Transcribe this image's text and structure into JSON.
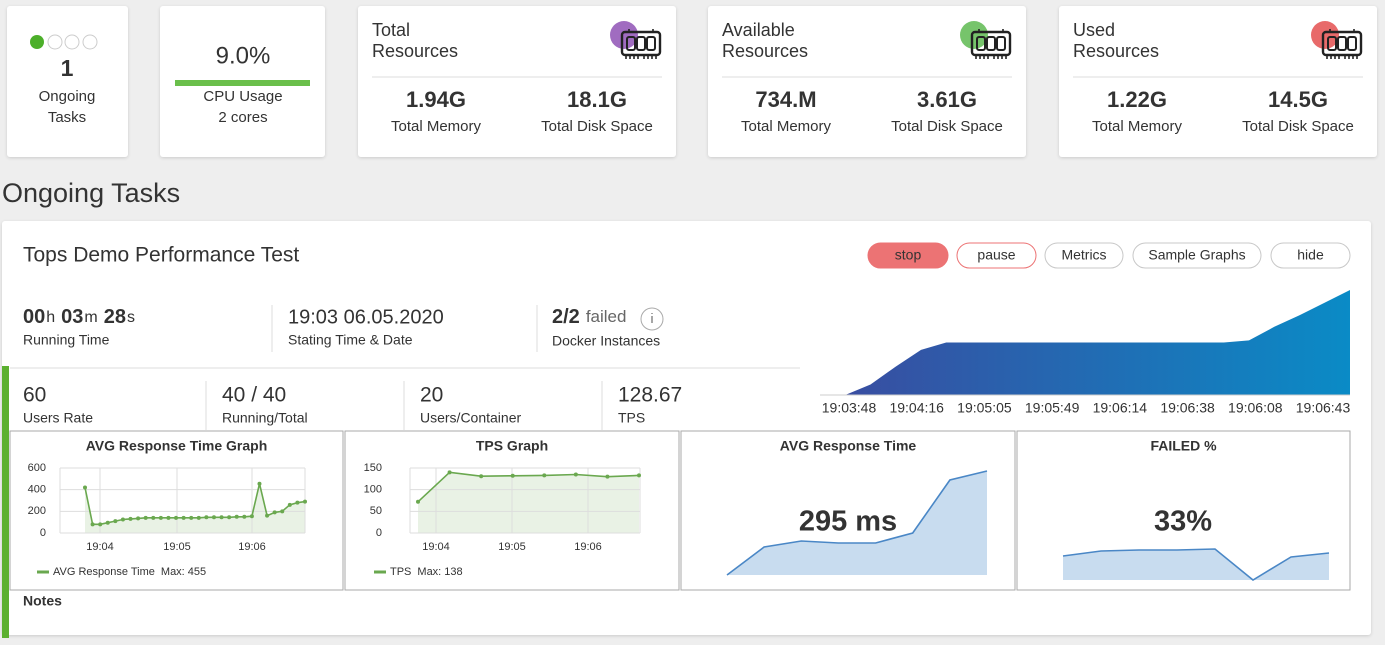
{
  "ongoing_card": {
    "count": "1",
    "label": [
      "Ongoing",
      "Tasks"
    ]
  },
  "cpu_card": {
    "value": "9.0%",
    "label": "CPU Usage",
    "cores": "2 cores"
  },
  "resource_cards": [
    {
      "title": [
        "Total",
        "Resources"
      ],
      "icon_color": "#a06cc0",
      "memory": "1.94G",
      "memory_label": "Total Memory",
      "disk": "18.1G",
      "disk_label": "Total Disk Space"
    },
    {
      "title": [
        "Available",
        "Resources"
      ],
      "icon_color": "#76c46b",
      "memory": "734.M",
      "memory_label": "Total Memory",
      "disk": "3.61G",
      "disk_label": "Total Disk Space"
    },
    {
      "title": [
        "Used",
        "Resources"
      ],
      "icon_color": "#e86a6a",
      "memory": "1.22G",
      "memory_label": "Total Memory",
      "disk": "14.5G",
      "disk_label": "Total Disk Space"
    }
  ],
  "section_title": "Ongoing Tasks",
  "task": {
    "title": "Tops Demo Performance Test",
    "buttons": [
      "stop",
      "pause",
      "Metrics",
      "Sample Graphs",
      "hide"
    ],
    "running_time": [
      {
        "num": "00",
        "unit": "h"
      },
      {
        "num": "03",
        "unit": "m"
      },
      {
        "num": "28",
        "unit": "s"
      }
    ],
    "running_time_label": "Running Time",
    "start": "19:03 06.05.2020",
    "start_label": "Stating Time & Date",
    "docker": "2/2",
    "docker_status": "failed",
    "docker_label": "Docker Instances",
    "stats": [
      {
        "value": "60",
        "label": "Users Rate"
      },
      {
        "value": "40 / 40",
        "label": "Running/Total"
      },
      {
        "value": "20",
        "label": "Users/Container"
      },
      {
        "value": "128.67",
        "label": "TPS"
      }
    ],
    "notes_label": "Notes"
  },
  "chart_data": [
    {
      "type": "area",
      "x_labels": [
        "19:03:48",
        "19:04:16",
        "19:05:05",
        "19:05:49",
        "19:06:14",
        "19:06:38",
        "19:06:08",
        "19:06:43"
      ],
      "values": [
        0,
        0,
        10,
        27,
        43,
        50,
        50,
        50,
        50,
        50,
        50,
        50,
        50,
        50,
        50,
        50,
        50,
        52,
        65,
        76,
        88,
        100
      ],
      "ylim": [
        0,
        100
      ],
      "gradient": [
        "#3b4a9f",
        "#0a8bc6"
      ]
    },
    {
      "type": "line",
      "title": "AVG Response Time Graph",
      "x_labels": [
        "19:04",
        "19:05",
        "19:06"
      ],
      "series": [
        {
          "name": "AVG Response Time",
          "color": "#6aa84f",
          "values": [
            420,
            80,
            80,
            95,
            110,
            125,
            130,
            135,
            140,
            140,
            140,
            140,
            140,
            140,
            140,
            140,
            145,
            145,
            145,
            145,
            150,
            150,
            155,
            455,
            160,
            190,
            200,
            260,
            280,
            290
          ]
        }
      ],
      "max_label": "Max: 455",
      "ylim": [
        0,
        600
      ],
      "yticks": [
        0,
        200,
        400,
        600
      ],
      "grid": true
    },
    {
      "type": "line",
      "title": "TPS Graph",
      "x_labels": [
        "19:04",
        "19:05",
        "19:06"
      ],
      "series": [
        {
          "name": "TPS",
          "color": "#6aa84f",
          "values": [
            72,
            140,
            131,
            132,
            133,
            135,
            130,
            133
          ]
        }
      ],
      "max_label": "Max: 138",
      "ylim": [
        0,
        150
      ],
      "yticks": [
        0,
        50,
        100,
        150
      ],
      "grid": true
    },
    {
      "type": "kpi",
      "title": "AVG Response Time",
      "big_value": "295 ms",
      "big_color": "#e8842a",
      "values": [
        0,
        28,
        34,
        32,
        32,
        42,
        95,
        104
      ],
      "ylim": [
        0,
        110
      ],
      "color": "#c8dcef",
      "line_color": "#4a87c6"
    },
    {
      "type": "kpi",
      "title": "FAILED %",
      "big_value": "33%",
      "big_color": "#e53935",
      "values": [
        24,
        29,
        30,
        30,
        31,
        0,
        23,
        27
      ],
      "ylim": [
        0,
        110
      ],
      "color": "#c8dcef",
      "line_color": "#4a87c6"
    }
  ]
}
